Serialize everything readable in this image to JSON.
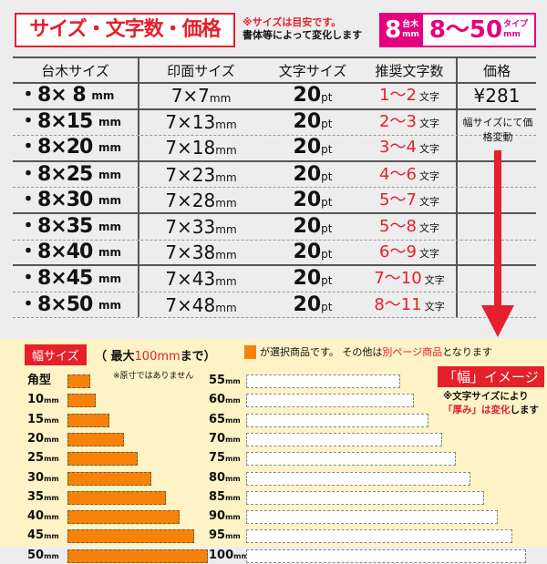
{
  "title": "サイズ・文字数・価格",
  "note": {
    "line1": "※サイズは目安です。",
    "line2": "書体等によって変化します"
  },
  "badge": {
    "base": "8",
    "base_unit_top": "台木",
    "base_unit": "mm",
    "range": "8～50",
    "type_top": "タイプ",
    "type_unit": "mm"
  },
  "colors": {
    "accent_red": "#e5202a",
    "magenta": "#e5007f",
    "orange": "#f7820a"
  },
  "table": {
    "headers": [
      "台木サイズ",
      "印面サイズ",
      "文字サイズ",
      "推奨文字数",
      "価格"
    ],
    "rows": [
      {
        "base": "・8× 8",
        "print": "7×7",
        "pt": "20",
        "rec": "1～2",
        "price": "¥281"
      },
      {
        "base": "・8×15",
        "print": "7×13",
        "pt": "20",
        "rec": "2～3"
      },
      {
        "base": "・8×20",
        "print": "7×18",
        "pt": "20",
        "rec": "3～4"
      },
      {
        "base": "・8×25",
        "print": "7×23",
        "pt": "20",
        "rec": "4～6"
      },
      {
        "base": "・8×30",
        "print": "7×28",
        "pt": "20",
        "rec": "5～7"
      },
      {
        "base": "・8×35",
        "print": "7×33",
        "pt": "20",
        "rec": "5～8"
      },
      {
        "base": "・8×40",
        "print": "7×38",
        "pt": "20",
        "rec": "6～9"
      },
      {
        "base": "・8×45",
        "print": "7×43",
        "pt": "20",
        "rec": "7～10"
      },
      {
        "base": "・8×50",
        "print": "7×48",
        "pt": "20",
        "rec": "8～11"
      }
    ],
    "unit_mm": "mm",
    "unit_pt": "pt",
    "unit_chars": "文字",
    "price_note": "幅サイズにて価格変動"
  },
  "width": {
    "label": "幅サイズ",
    "max_open": "（ 最大",
    "max_value": "100mm",
    "max_close": "まで）",
    "legend_text": "が選択商品です。 その他は",
    "legend_red": "別ページ商品",
    "legend_end": "となります",
    "not_actual": "※原寸ではありません",
    "image_title": "「幅」イメージ",
    "image_note1": "※文字サイズにより",
    "image_note2_red": "「厚み」は変化",
    "image_note2_end": "します",
    "selected": [
      {
        "label": "角型",
        "mm": 8
      },
      {
        "label": "10",
        "mm": 10
      },
      {
        "label": "15",
        "mm": 15
      },
      {
        "label": "20",
        "mm": 20
      },
      {
        "label": "25",
        "mm": 25
      },
      {
        "label": "30",
        "mm": 30
      },
      {
        "label": "35",
        "mm": 35
      },
      {
        "label": "40",
        "mm": 40
      },
      {
        "label": "45",
        "mm": 45
      },
      {
        "label": "50",
        "mm": 50
      }
    ],
    "others": [
      {
        "label": "55",
        "mm": 55
      },
      {
        "label": "60",
        "mm": 60
      },
      {
        "label": "65",
        "mm": 65
      },
      {
        "label": "70",
        "mm": 70
      },
      {
        "label": "75",
        "mm": 75
      },
      {
        "label": "80",
        "mm": 80
      },
      {
        "label": "85",
        "mm": 85
      },
      {
        "label": "90",
        "mm": 90
      },
      {
        "label": "95",
        "mm": 95
      },
      {
        "label": "100",
        "mm": 100
      }
    ],
    "unit": "mm"
  }
}
